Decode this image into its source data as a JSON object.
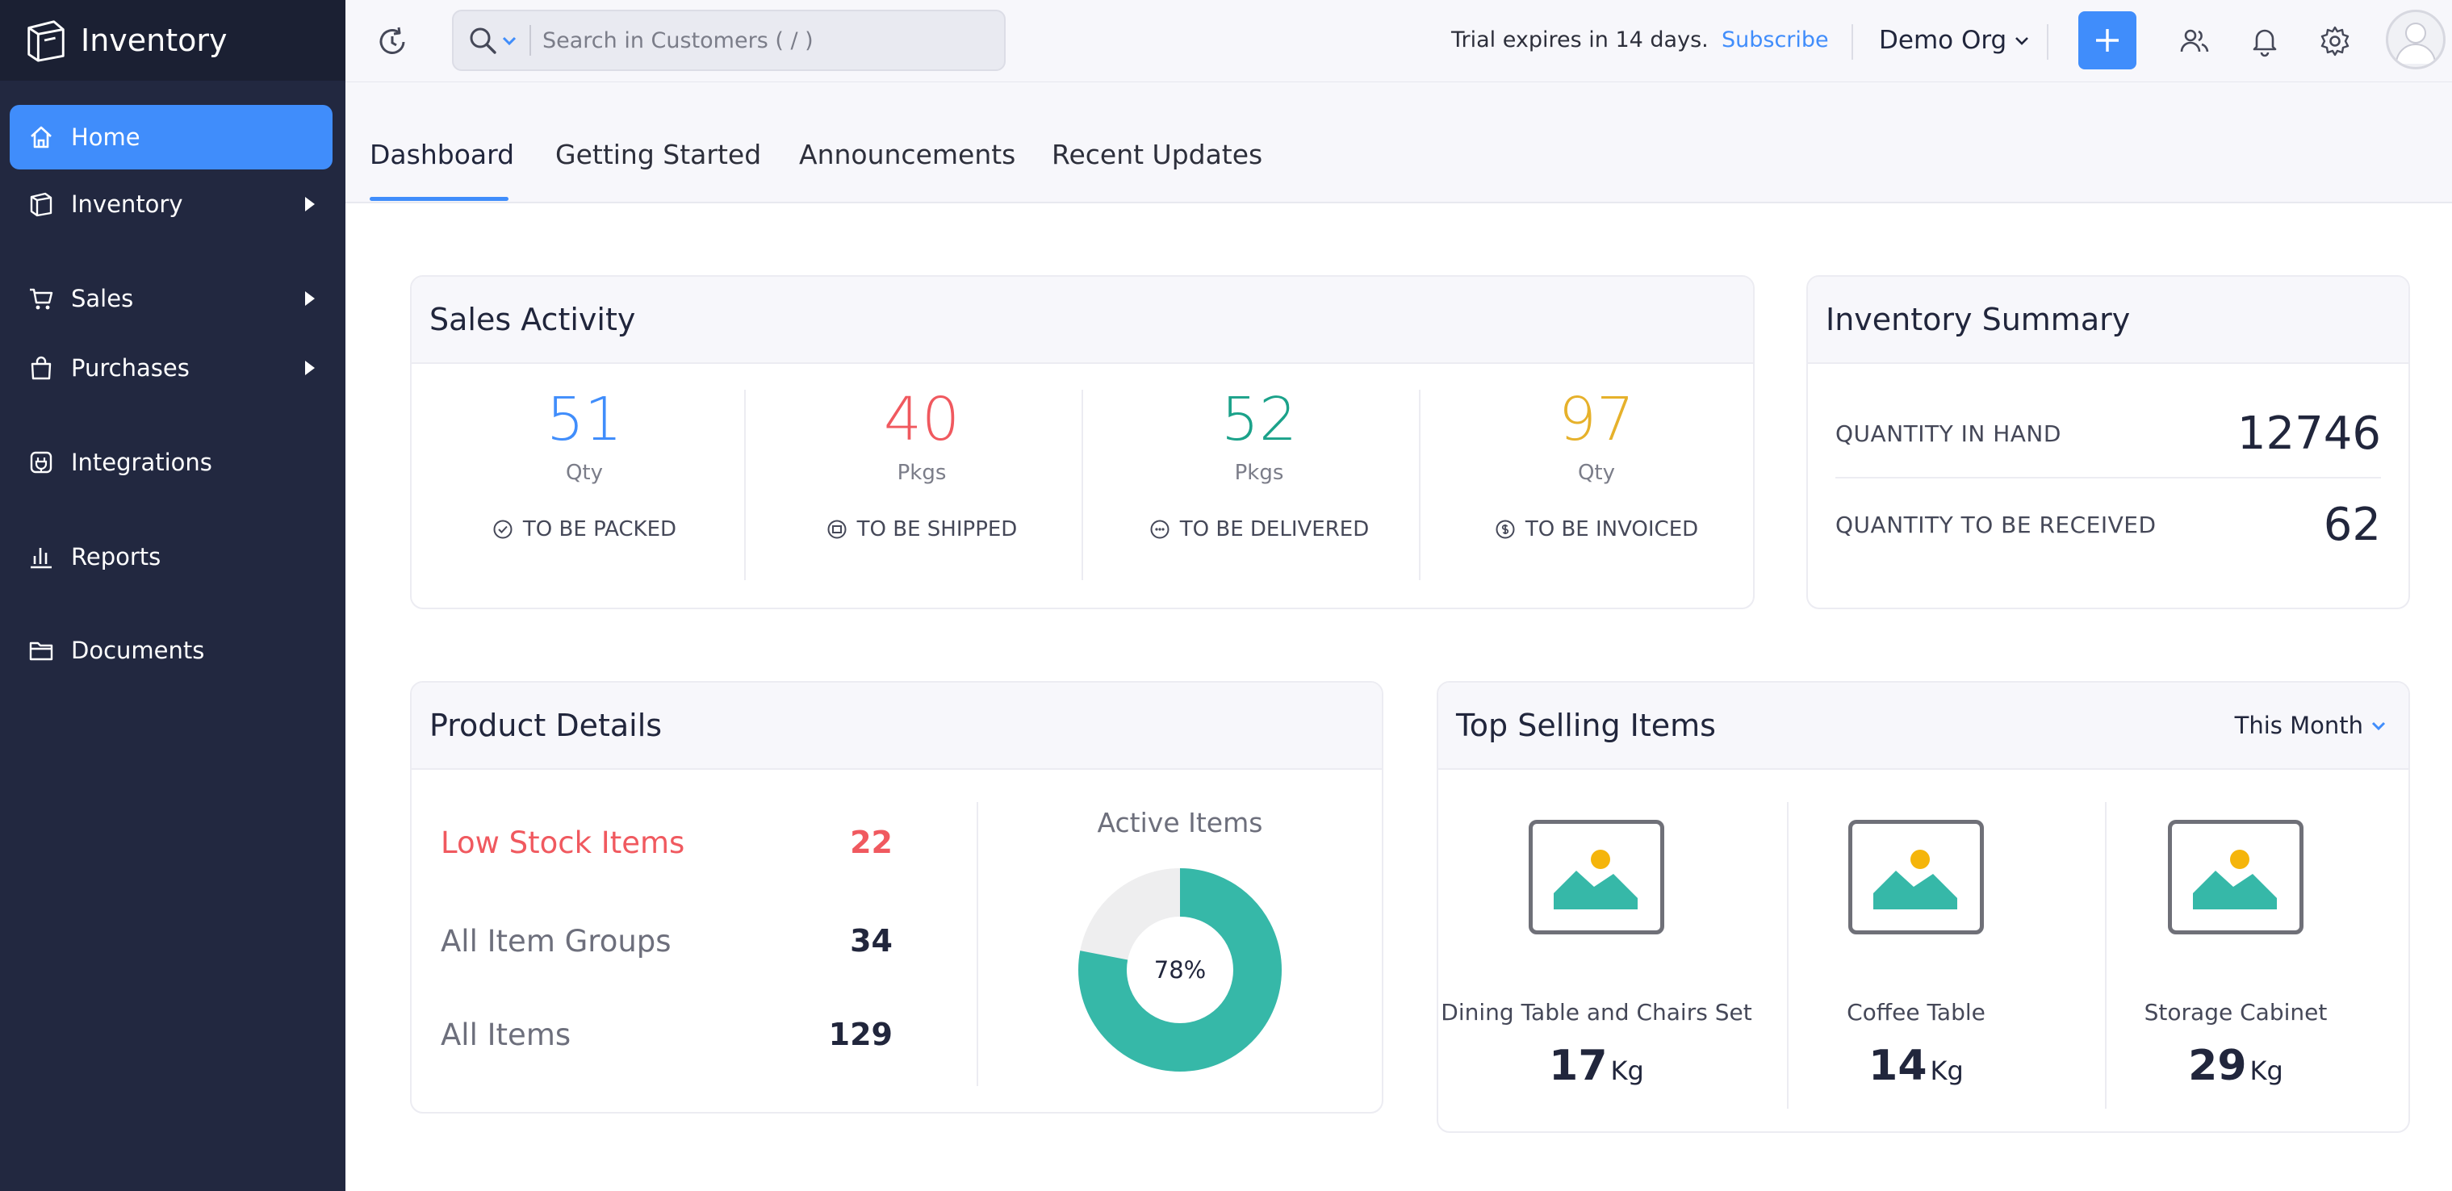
{
  "brand": {
    "name": "Inventory"
  },
  "sidebar": {
    "items": [
      {
        "label": "Home",
        "active": true,
        "icon": "home-icon"
      },
      {
        "label": "Inventory",
        "expandable": true,
        "icon": "inventory-icon"
      },
      {
        "label": "Sales",
        "expandable": true,
        "icon": "cart-icon"
      },
      {
        "label": "Purchases",
        "expandable": true,
        "icon": "bag-icon"
      },
      {
        "label": "Integrations",
        "icon": "integrations-icon"
      },
      {
        "label": "Reports",
        "icon": "bar-chart-icon"
      },
      {
        "label": "Documents",
        "icon": "folder-icon"
      }
    ]
  },
  "topbar": {
    "search_placeholder": "Search in Customers ( / )",
    "trial_text": "Trial expires in 14 days.",
    "subscribe_label": "Subscribe",
    "org_name": "Demo Org"
  },
  "tabs": [
    {
      "label": "Dashboard",
      "active": true
    },
    {
      "label": "Getting Started"
    },
    {
      "label": "Announcements"
    },
    {
      "label": "Recent Updates"
    }
  ],
  "sales_activity": {
    "title": "Sales Activity",
    "items": [
      {
        "value": "51",
        "unit": "Qty",
        "label": "TO BE PACKED",
        "color": "#408dfb"
      },
      {
        "value": "40",
        "unit": "Pkgs",
        "label": "TO BE SHIPPED",
        "color": "#f0595f"
      },
      {
        "value": "52",
        "unit": "Pkgs",
        "label": "TO BE DELIVERED",
        "color": "#1ba28a"
      },
      {
        "value": "97",
        "unit": "Qty",
        "label": "TO BE INVOICED",
        "color": "#e6b12b"
      }
    ]
  },
  "inventory_summary": {
    "title": "Inventory Summary",
    "rows": [
      {
        "label": "QUANTITY IN HAND",
        "value": "12746"
      },
      {
        "label": "QUANTITY TO BE RECEIVED",
        "value": "62"
      }
    ]
  },
  "product_details": {
    "title": "Product Details",
    "rows": [
      {
        "label": "Low Stock Items",
        "value": "22",
        "highlight": "#f0595f"
      },
      {
        "label": "All Item Groups",
        "value": "34"
      },
      {
        "label": "All Items",
        "value": "129"
      }
    ],
    "active_items": {
      "title": "Active Items",
      "percent_label": "78%",
      "fraction": 0.78,
      "color": "#36b8a8",
      "track_color": "#eeeeef"
    }
  },
  "top_selling": {
    "title": "Top Selling Items",
    "period": "This Month",
    "items": [
      {
        "name": "Dining Table and Chairs Set",
        "qty": "17",
        "unit": "Kg"
      },
      {
        "name": "Coffee Table",
        "qty": "14",
        "unit": "Kg"
      },
      {
        "name": "Storage Cabinet",
        "qty": "29",
        "unit": "Kg"
      }
    ]
  }
}
